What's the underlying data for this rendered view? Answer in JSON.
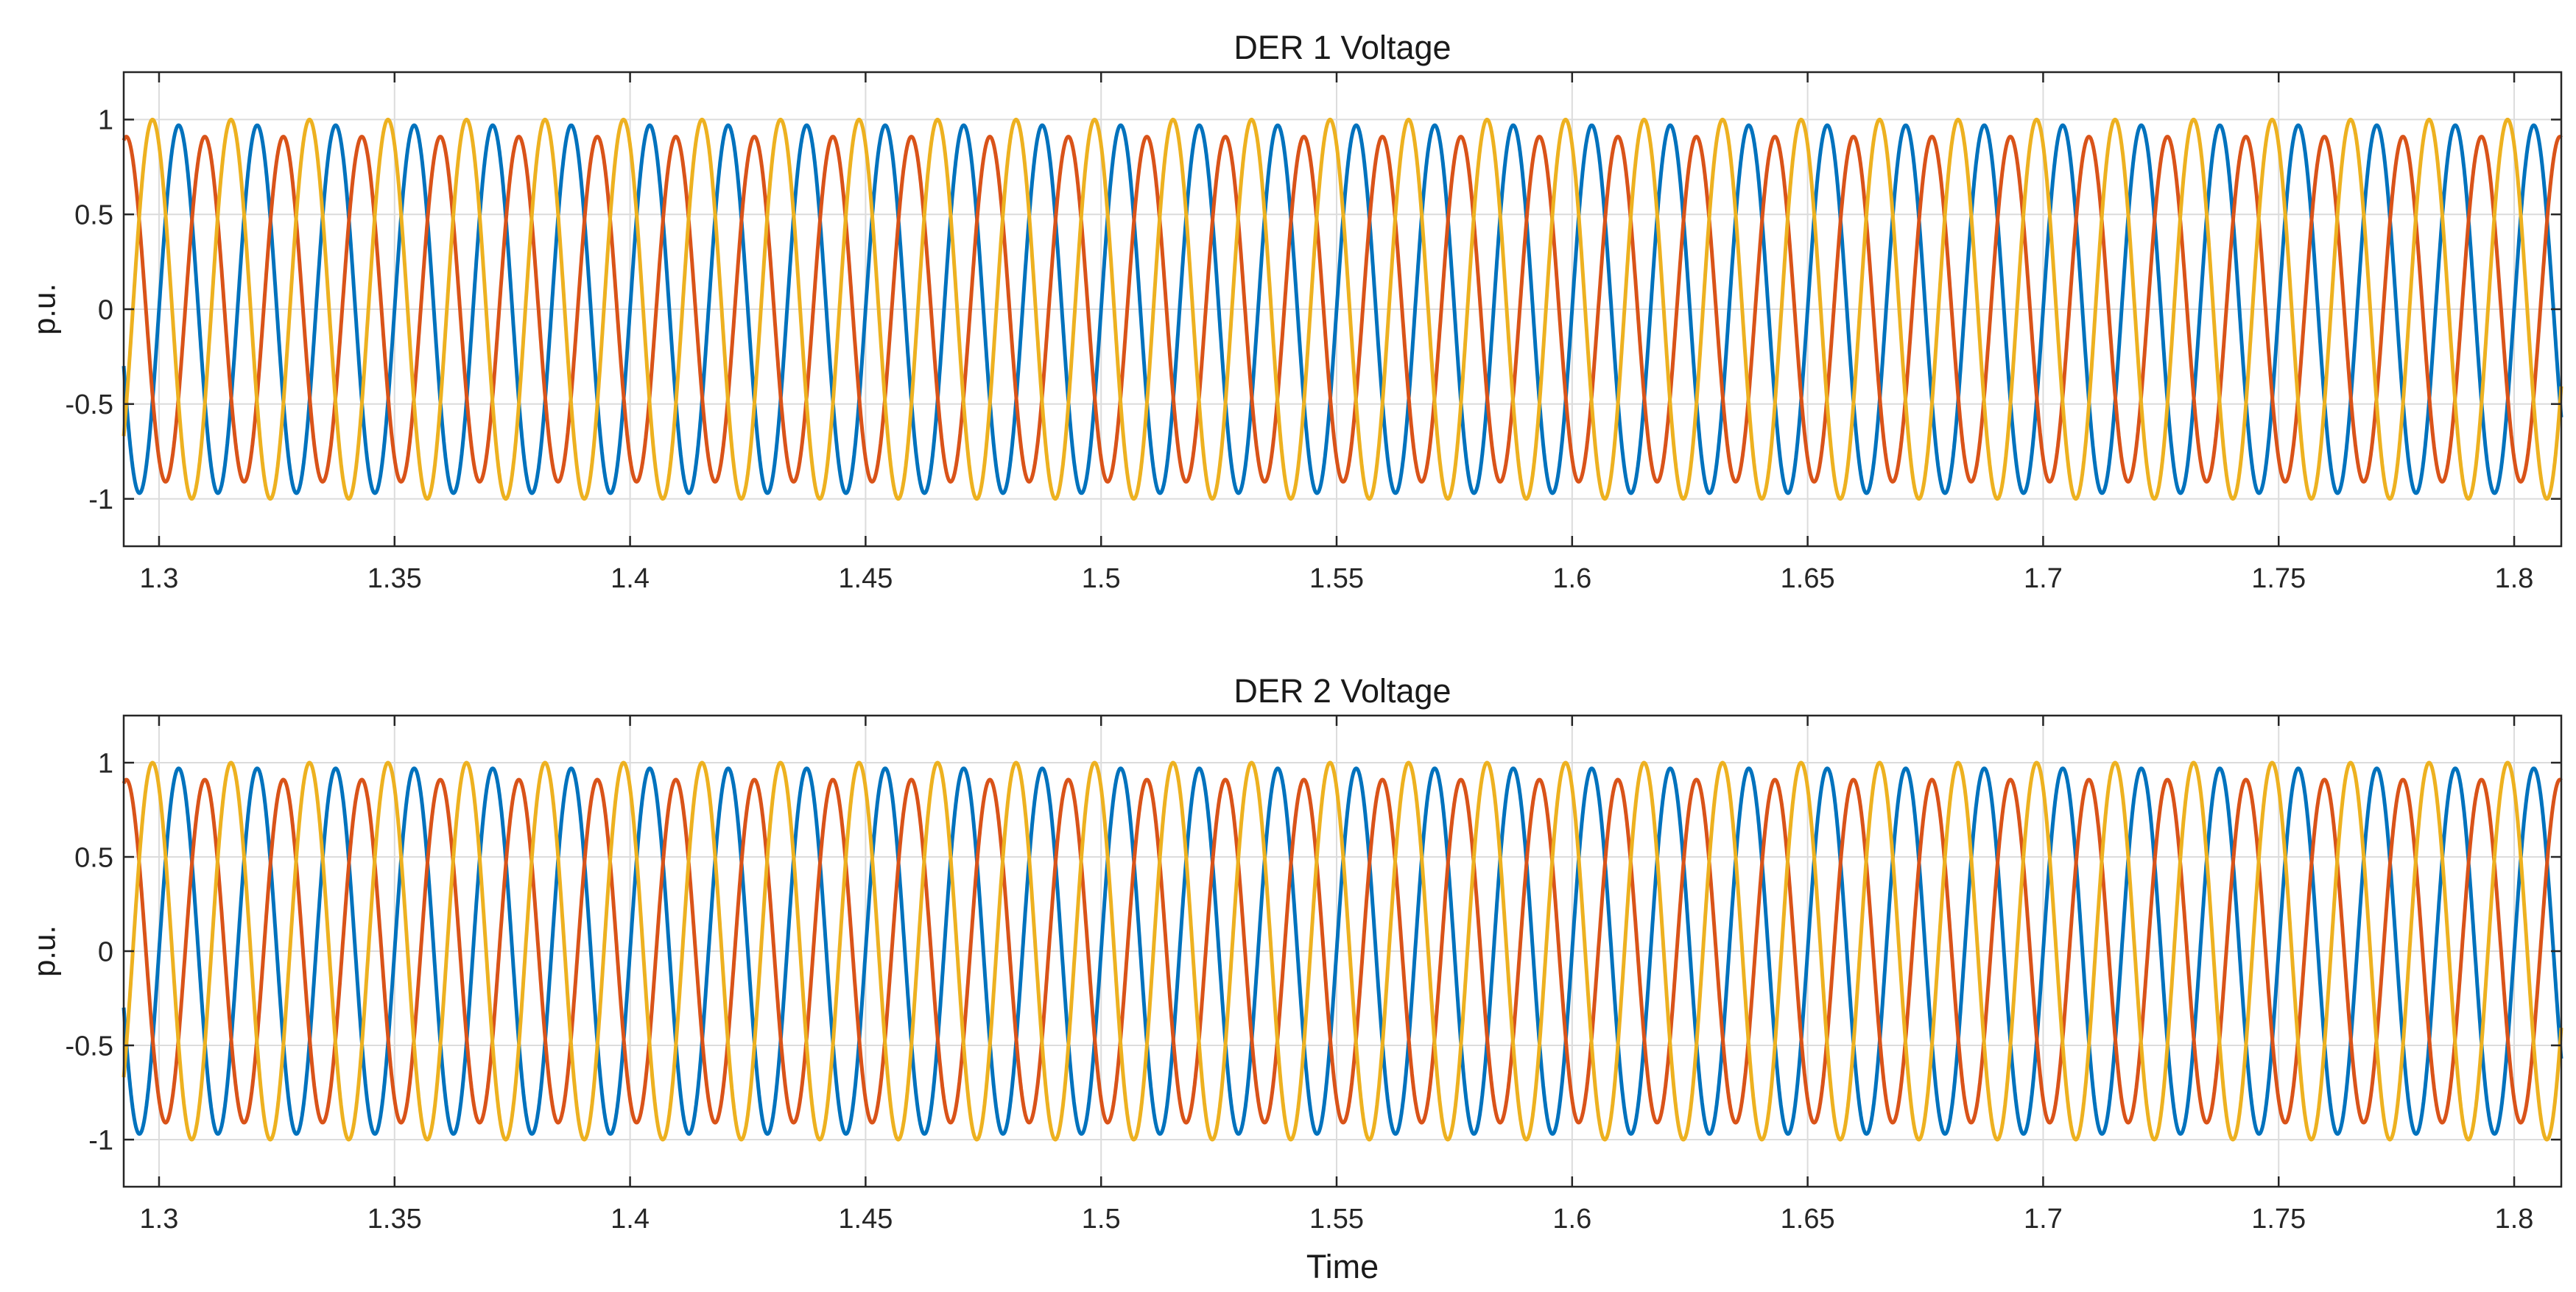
{
  "chart_data": [
    {
      "type": "line",
      "title": "DER 1 Voltage",
      "xlabel": "",
      "ylabel": "p.u.",
      "xlim": [
        1.2925,
        1.81
      ],
      "ylim": [
        -1.25,
        1.25
      ],
      "xticks": [
        1.3,
        1.35,
        1.4,
        1.45,
        1.5,
        1.55,
        1.6,
        1.65,
        1.7,
        1.75,
        1.8
      ],
      "xtick_labels": [
        "1.3",
        "1.35",
        "1.4",
        "1.45",
        "1.5",
        "1.55",
        "1.6",
        "1.65",
        "1.7",
        "1.75",
        "1.8"
      ],
      "yticks": [
        -1,
        -0.5,
        0,
        0.5,
        1
      ],
      "ytick_labels": [
        "-1",
        "-0.5",
        "0",
        "0.5",
        "1"
      ],
      "grid": true,
      "frequency_hz": 60,
      "series": [
        {
          "color": "#0072BD",
          "amplitude": 0.97,
          "phase_deg": 0
        },
        {
          "color": "#D95319",
          "amplitude": 0.91,
          "phase_deg": -120
        },
        {
          "color": "#EDB120",
          "amplitude": 1.0,
          "phase_deg": 120
        }
      ]
    },
    {
      "type": "line",
      "title": "DER 2 Voltage",
      "xlabel": "Time",
      "ylabel": "p.u.",
      "xlim": [
        1.2925,
        1.81
      ],
      "ylim": [
        -1.25,
        1.25
      ],
      "xticks": [
        1.3,
        1.35,
        1.4,
        1.45,
        1.5,
        1.55,
        1.6,
        1.65,
        1.7,
        1.75,
        1.8
      ],
      "xtick_labels": [
        "1.3",
        "1.35",
        "1.4",
        "1.45",
        "1.5",
        "1.55",
        "1.6",
        "1.65",
        "1.7",
        "1.75",
        "1.8"
      ],
      "yticks": [
        -1,
        -0.5,
        0,
        0.5,
        1
      ],
      "ytick_labels": [
        "-1",
        "-0.5",
        "0",
        "0.5",
        "1"
      ],
      "grid": true,
      "frequency_hz": 60,
      "series": [
        {
          "color": "#0072BD",
          "amplitude": 0.97,
          "phase_deg": 0
        },
        {
          "color": "#D95319",
          "amplitude": 0.91,
          "phase_deg": -120
        },
        {
          "color": "#EDB120",
          "amplitude": 1.0,
          "phase_deg": 120
        }
      ]
    }
  ]
}
